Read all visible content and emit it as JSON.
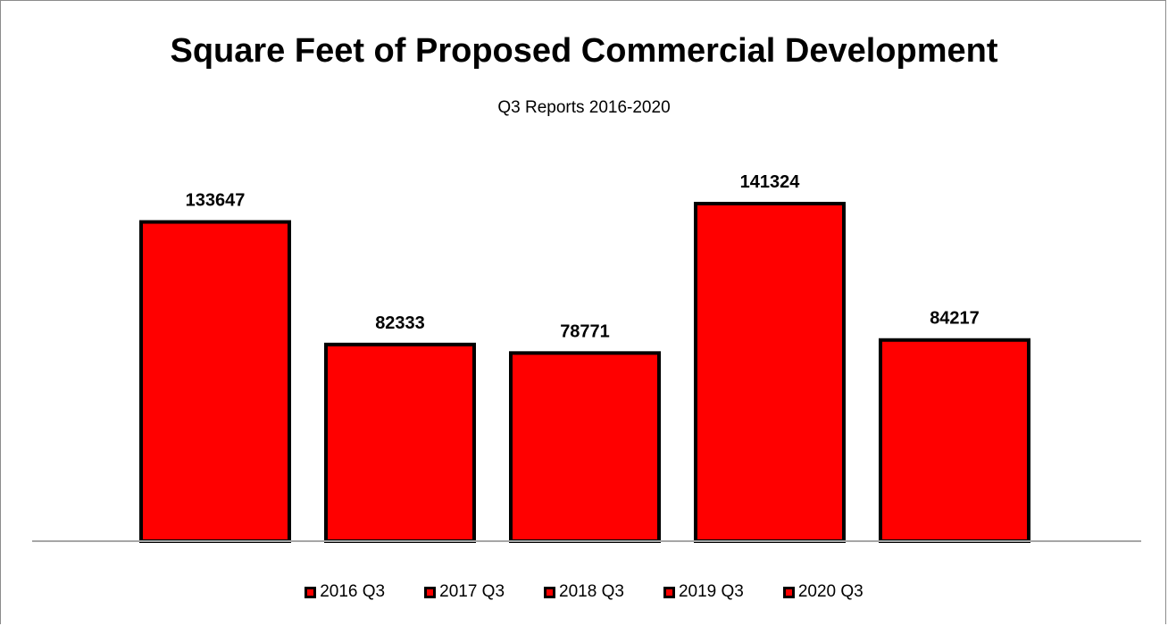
{
  "chart_data": {
    "type": "bar",
    "title": "Square Feet of Proposed Commercial Development",
    "subtitle": "Q3 Reports 2016-2020",
    "categories": [
      "2016 Q3",
      "2017 Q3",
      "2018 Q3",
      "2019 Q3",
      "2020 Q3"
    ],
    "values": [
      133647,
      82333,
      78771,
      141324,
      84217
    ],
    "data_labels": [
      "133647",
      "82333",
      "78771",
      "141324",
      "84217"
    ],
    "legend": [
      "2016 Q3",
      "2017 Q3",
      "2018 Q3",
      "2019 Q3",
      "2020 Q3"
    ],
    "legend_position": "bottom",
    "ylim": [
      0,
      180000
    ],
    "grid": false,
    "colors": {
      "bar_fill": "#ff0000",
      "bar_border": "#000000",
      "axis": "#a6a6a6"
    }
  }
}
